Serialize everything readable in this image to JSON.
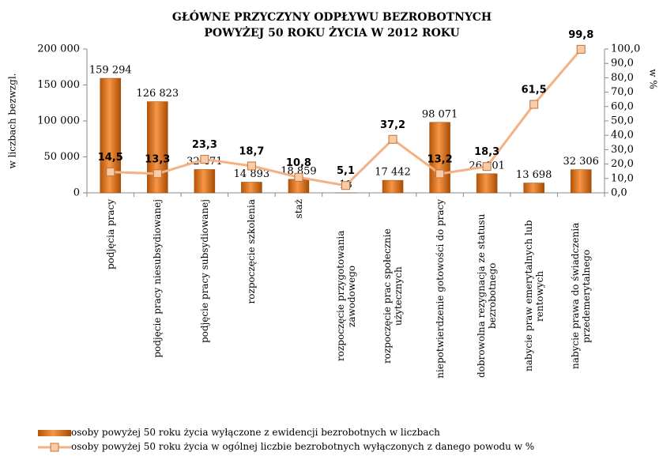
{
  "chart_data": {
    "type": "bar-line",
    "title": "GŁÓWNE  PRZYCZYNY  ODPŁYWU  BEZROBOTNYCH",
    "subtitle": "POWYŻEJ  50  ROKU  ŻYCIA W  2012  ROKU",
    "ylabel": "w liczbach bezwzgl.",
    "y2label": "w %",
    "categories": [
      "podjęcia pracy",
      "podjęcie pracy niesubsydiowanej",
      "podjęcie pracy subsydiowanej",
      "rozpoczęcie szkolenia",
      "staż",
      "rozpoczęcie przygotowania zawodowego",
      "rozpoczęcie prac społecznie użytecznych",
      "niepotwierdzenie gotowości do pracy",
      "dobrowolna rezygnacja ze statusu bezrobotnego",
      "nabycie praw emerytalnych lub rentowych",
      "nabycie prawa do świadczenia przedemerytalnego"
    ],
    "series": [
      {
        "name": "osoby powyżej 50 roku życia wyłączone z ewidencji bezrobotnych w liczbach",
        "type": "bar",
        "color": "#e36c09",
        "values": [
          159294,
          126823,
          32471,
          14893,
          18859,
          18,
          17442,
          98071,
          26601,
          13698,
          32306
        ],
        "value_labels": [
          "159 294",
          "126 823",
          "32 471",
          "14 893",
          "18 859",
          "18",
          "17 442",
          "98 071",
          "26 601",
          "13 698",
          "32 306"
        ]
      },
      {
        "name": "osoby powyżej 50 roku życia w ogólnej liczbie bezrobotnych wyłączonych z danego powodu w %",
        "type": "line",
        "axis": "y2",
        "color": "#f4b183",
        "values": [
          14.5,
          13.3,
          23.3,
          18.7,
          10.8,
          5.1,
          37.2,
          13.2,
          18.3,
          61.5,
          99.8
        ],
        "value_labels": [
          "14,5",
          "13,3",
          "23,3",
          "18,7",
          "10,8",
          "5,1",
          "37,2",
          "13,2",
          "18,3",
          "61,5",
          "99,8"
        ]
      }
    ],
    "ylim": [
      0,
      200000
    ],
    "yticks": [
      0,
      {
        "value": 50000,
        "label": "50 000"
      },
      {
        "value": 100000,
        "label": "100 000"
      },
      {
        "value": 150000,
        "label": "150 000"
      },
      {
        "value": 200000,
        "label": "200 000"
      }
    ],
    "y2lim": [
      0,
      100
    ],
    "y2ticks": [
      {
        "value": 0,
        "label": "0,0"
      },
      {
        "value": 10,
        "label": "10,0"
      },
      {
        "value": 20,
        "label": "20,0"
      },
      {
        "value": 30,
        "label": "30,0"
      },
      {
        "value": 40,
        "label": "40,0"
      },
      {
        "value": 50,
        "label": "50,0"
      },
      {
        "value": 60,
        "label": "60,0"
      },
      {
        "value": 70,
        "label": "70,0"
      },
      {
        "value": 80,
        "label": "80,0"
      },
      {
        "value": 90,
        "label": "90,0"
      },
      {
        "value": 100,
        "label": "100,0"
      }
    ],
    "legend": "bottom"
  }
}
